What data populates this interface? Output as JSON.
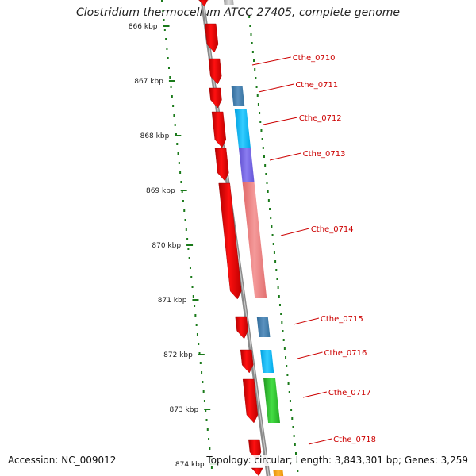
{
  "title": "Clostridium thermocellum ATCC 27405, complete genome",
  "accession": "Accession: NC_009012",
  "topology": "Topology: circular; Length: 3,843,301 bp; Genes: 3,259",
  "tick_labels": [
    "866 kbp",
    "867 kbp",
    "868 kbp",
    "869 kbp",
    "870 kbp",
    "871 kbp",
    "872 kbp",
    "873 kbp",
    "874 kbp"
  ],
  "gene_labels": [
    "Cthe_0710",
    "Cthe_0711",
    "Cthe_0712",
    "Cthe_0713",
    "Cthe_0714",
    "Cthe_0715",
    "Cthe_0716",
    "Cthe_0717",
    "Cthe_0718"
  ],
  "colors": {
    "cds": "#ff0000",
    "cog_blue": "#4682b4",
    "cog_cyan": "#00bfff",
    "cog_purple": "#7b68ee",
    "cog_pink": "#f08080",
    "cog_green": "#32cd32",
    "cog_orange": "#ffa500",
    "backbone": "#888888",
    "ticks": "#1a7a1a",
    "label": "#cc0000"
  }
}
